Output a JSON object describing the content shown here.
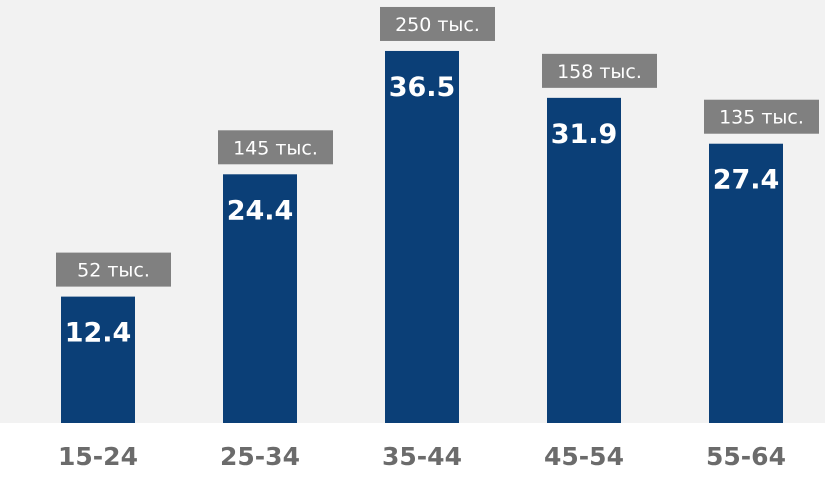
{
  "colors": {
    "plot_background": "#f2f2f2",
    "bar": "#0b3f77",
    "bar_value_text": "#ffffff",
    "badge": "#808080",
    "badge_text": "#ffffff",
    "category_text": "#6b6b6b"
  },
  "chart_data": {
    "type": "bar",
    "categories": [
      "15-24",
      "25-34",
      "35-44",
      "45-54",
      "55-64"
    ],
    "values": [
      12.4,
      24.4,
      36.5,
      31.9,
      27.4
    ],
    "value_labels": [
      "12.4",
      "24.4",
      "36.5",
      "31.9",
      "27.4"
    ],
    "annotations": [
      "52 тыс.",
      "145 тыс.",
      "250 тыс.",
      "158 тыс.",
      "135 тыс."
    ],
    "ylim": [
      0,
      41.5
    ],
    "grid": false,
    "legend": "none"
  }
}
